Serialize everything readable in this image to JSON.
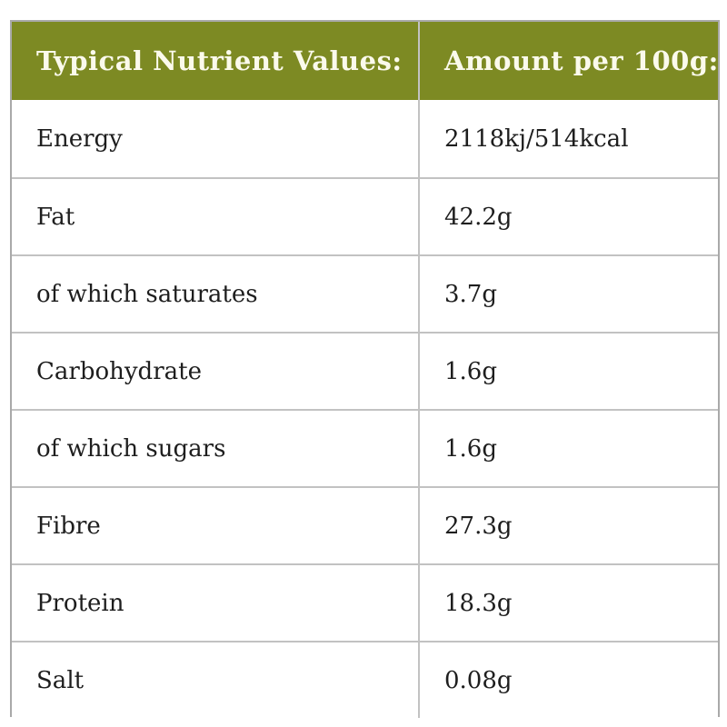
{
  "table": {
    "header": {
      "col1": "Typical Nutrient Values:",
      "col2": "Amount per 100g:"
    },
    "rows": [
      {
        "label": "Energy",
        "value": "2118kj/514kcal"
      },
      {
        "label": "Fat",
        "value": "42.2g"
      },
      {
        "label": "of which saturates",
        "value": "3.7g"
      },
      {
        "label": "Carbohydrate",
        "value": "1.6g"
      },
      {
        "label": "of which sugars",
        "value": "1.6g"
      },
      {
        "label": "Fibre",
        "value": "27.3g"
      },
      {
        "label": "Protein",
        "value": "18.3g"
      },
      {
        "label": "Salt",
        "value": "0.08g"
      }
    ],
    "colors": {
      "page_bg": "#ffffff",
      "header_bg": "#7d8a23",
      "header_text": "#fbfaec",
      "body_text": "#1e1e1e",
      "grid_line": "#c2c2c2",
      "outer_border": "#a9a9a9"
    }
  }
}
